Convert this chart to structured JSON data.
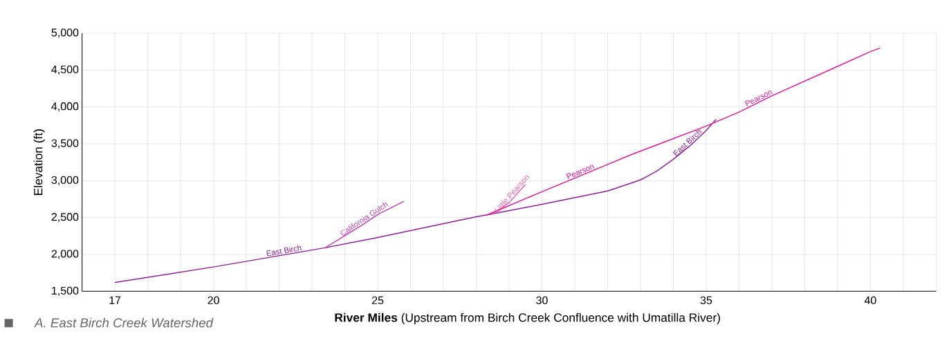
{
  "chart_data": {
    "type": "line",
    "xlabel": "**River Miles**  (Upstream from Birch Creek Confluence with Umatilla River)",
    "ylabel": "Elevation (ft)",
    "annotations": [
      "*A. East Birch Creek Watershed*"
    ],
    "xlim": [
      16,
      42
    ],
    "xticks": [
      17,
      {
        "value": 18,
        "label": null
      },
      {
        "value": 19,
        "label": null
      },
      20,
      {
        "value": 21,
        "label": null
      },
      {
        "value": 22,
        "label": null
      },
      {
        "value": 23,
        "label": null
      },
      {
        "value": 24,
        "label": null
      },
      25,
      {
        "value": 26,
        "label": null
      },
      {
        "value": 27,
        "label": null
      },
      {
        "value": 28,
        "label": null
      },
      {
        "value": 29,
        "label": null
      },
      30,
      {
        "value": 31,
        "label": null
      },
      {
        "value": 32,
        "label": null
      },
      {
        "value": 33,
        "label": null
      },
      {
        "value": 34,
        "label": null
      },
      35,
      {
        "value": 36,
        "label": null
      },
      {
        "value": 37,
        "label": null
      },
      {
        "value": 38,
        "label": null
      },
      {
        "value": 39,
        "label": null
      },
      40,
      {
        "value": 41,
        "label": null
      },
      {
        "value": 42,
        "label": null
      }
    ],
    "ylim": [
      1500,
      5000
    ],
    "yticks": [
      {
        "value": 1500,
        "label": "1,500"
      },
      {
        "value": 2000,
        "label": "2,000"
      },
      {
        "value": 2500,
        "label": "2,500"
      },
      {
        "value": 3000,
        "label": "3,000"
      },
      {
        "value": 3500,
        "label": "3,500"
      },
      {
        "value": 4000,
        "label": "4,000"
      },
      {
        "value": 4500,
        "label": "4,500"
      },
      {
        "value": 5000,
        "label": "5,000"
      }
    ],
    "grid": true,
    "marker": "none",
    "line_style": "solid",
    "series": [
      {
        "name": "East Birch",
        "color": "#8e1e96",
        "x": [
          17,
          20,
          23.4,
          25,
          28,
          28.5,
          30,
          32,
          33,
          33.5,
          34,
          34.5,
          35,
          35.3
        ],
        "values": [
          1620,
          1830,
          2090,
          2230,
          2510,
          2550,
          2680,
          2860,
          3010,
          3130,
          3290,
          3470,
          3680,
          3830
        ]
      },
      {
        "name": "California Gulch",
        "color": "#c23fb4",
        "x": [
          23.4,
          24.5,
          25,
          25.8
        ],
        "values": [
          2090,
          2390,
          2540,
          2720
        ]
      },
      {
        "name": "Little Pearson",
        "color": "#f262b4",
        "x": [
          28.5,
          29,
          29.5
        ],
        "values": [
          2550,
          2700,
          2950
        ]
      },
      {
        "name": "Pearson",
        "color": "#e3169b",
        "x": [
          28.3,
          30,
          32,
          32.7,
          34,
          35,
          36,
          37,
          38,
          39,
          40,
          40.3
        ],
        "values": [
          2530,
          2850,
          3220,
          3350,
          3570,
          3740,
          3930,
          4150,
          4350,
          4550,
          4750,
          4800
        ]
      }
    ]
  }
}
